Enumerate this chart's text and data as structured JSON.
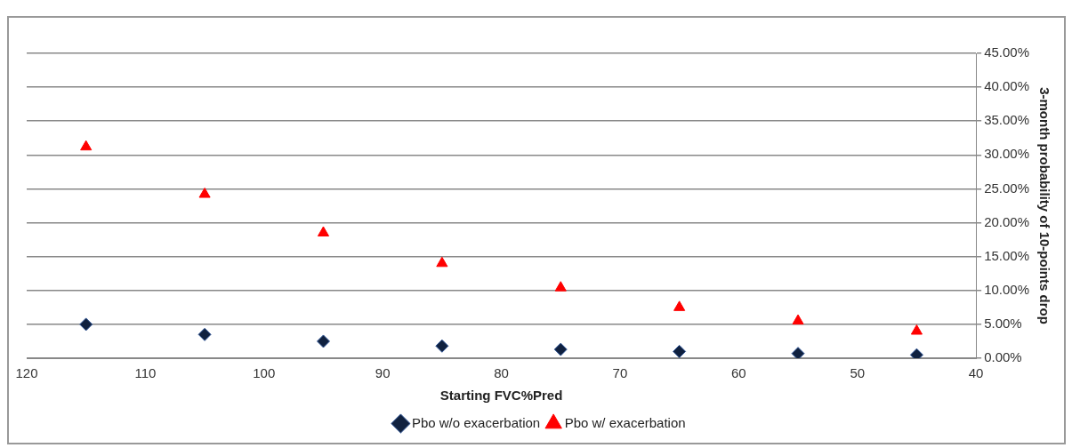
{
  "chart_data": {
    "type": "scatter",
    "xlabel": "Starting FVC%Pred",
    "ylabel": "3-month probability of 10-points drop",
    "x": [
      115,
      105,
      95,
      85,
      75,
      65,
      55,
      45
    ],
    "series": [
      {
        "name": "Pbo w/o exacerbation",
        "color": "#10213f",
        "marker": "diamond",
        "values": [
          5.0,
          3.5,
          2.5,
          1.8,
          1.3,
          1.0,
          0.7,
          0.5
        ]
      },
      {
        "name": "Pbo w/ exacerbation",
        "color": "#ff0000",
        "marker": "triangle",
        "values": [
          31.2,
          24.2,
          18.5,
          14.0,
          10.4,
          7.5,
          5.5,
          4.0
        ]
      }
    ],
    "xlim": [
      120,
      40
    ],
    "xticks": [
      120,
      110,
      100,
      90,
      80,
      70,
      60,
      50,
      40
    ],
    "ylim": [
      0,
      45
    ],
    "yticks": [
      {
        "value": 0,
        "label": "0.00%"
      },
      {
        "value": 5,
        "label": "5.00%"
      },
      {
        "value": 10,
        "label": "10.00%"
      },
      {
        "value": 15,
        "label": "15.00%"
      },
      {
        "value": 20,
        "label": "20.00%"
      },
      {
        "value": 25,
        "label": "25.00%"
      },
      {
        "value": 30,
        "label": "30.00%"
      },
      {
        "value": 35,
        "label": "35.00%"
      },
      {
        "value": 40,
        "label": "40.00%"
      },
      {
        "value": 45,
        "label": "45.00%"
      }
    ],
    "grid": "y",
    "legend": "bottom"
  }
}
